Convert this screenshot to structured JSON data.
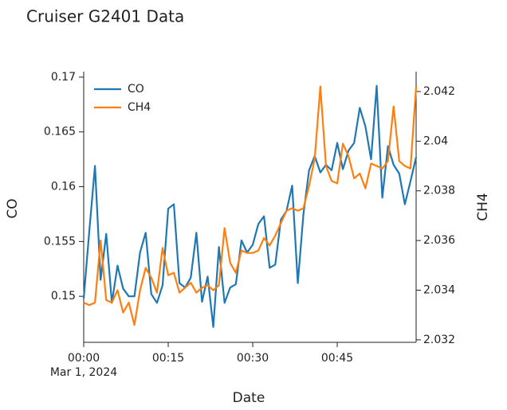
{
  "chart_data": {
    "type": "line",
    "title": "Cruiser G2401 Data",
    "x_label": "Date",
    "y_label": "CO",
    "y2_label": "CH4",
    "x_date_label": "Mar 1, 2024",
    "x": [
      "2024-03-01T00:00",
      "2024-03-01T00:01",
      "2024-03-01T00:02",
      "2024-03-01T00:03",
      "2024-03-01T00:04",
      "2024-03-01T00:05",
      "2024-03-01T00:06",
      "2024-03-01T00:07",
      "2024-03-01T00:08",
      "2024-03-01T00:09",
      "2024-03-01T00:10",
      "2024-03-01T00:11",
      "2024-03-01T00:12",
      "2024-03-01T00:13",
      "2024-03-01T00:14",
      "2024-03-01T00:15",
      "2024-03-01T00:16",
      "2024-03-01T00:17",
      "2024-03-01T00:18",
      "2024-03-01T00:19",
      "2024-03-01T00:20",
      "2024-03-01T00:21",
      "2024-03-01T00:22",
      "2024-03-01T00:23",
      "2024-03-01T00:24",
      "2024-03-01T00:25",
      "2024-03-01T00:26",
      "2024-03-01T00:27",
      "2024-03-01T00:28",
      "2024-03-01T00:29",
      "2024-03-01T00:30",
      "2024-03-01T00:31",
      "2024-03-01T00:32",
      "2024-03-01T00:33",
      "2024-03-01T00:34",
      "2024-03-01T00:35",
      "2024-03-01T00:36",
      "2024-03-01T00:37",
      "2024-03-01T00:38",
      "2024-03-01T00:39",
      "2024-03-01T00:40",
      "2024-03-01T00:41",
      "2024-03-01T00:42",
      "2024-03-01T00:43",
      "2024-03-01T00:44",
      "2024-03-01T00:45",
      "2024-03-01T00:46",
      "2024-03-01T00:47",
      "2024-03-01T00:48",
      "2024-03-01T00:49",
      "2024-03-01T00:50",
      "2024-03-01T00:51",
      "2024-03-01T00:52",
      "2024-03-01T00:53",
      "2024-03-01T00:54",
      "2024-03-01T00:55",
      "2024-03-01T00:56",
      "2024-03-01T00:57",
      "2024-03-01T00:58",
      "2024-03-01T00:59"
    ],
    "series": [
      {
        "name": "CO",
        "color": "#1f77b4",
        "values": [
          0.1498,
          0.156,
          0.1619,
          0.1515,
          0.1557,
          0.1494,
          0.1528,
          0.1507,
          0.15,
          0.15,
          0.154,
          0.1558,
          0.1502,
          0.1494,
          0.151,
          0.158,
          0.1584,
          0.1512,
          0.1508,
          0.1517,
          0.1558,
          0.1495,
          0.1518,
          0.1472,
          0.1545,
          0.1494,
          0.1508,
          0.1511,
          0.1551,
          0.154,
          0.1547,
          0.1566,
          0.1573,
          0.1526,
          0.1529,
          0.157,
          0.1578,
          0.1601,
          0.1512,
          0.1575,
          0.1615,
          0.1628,
          0.1613,
          0.162,
          0.1615,
          0.164,
          0.1616,
          0.1633,
          0.164,
          0.1672,
          0.1655,
          0.1625,
          0.1692,
          0.159,
          0.1637,
          0.162,
          0.1612,
          0.1584,
          0.1605,
          0.1627
        ]
      },
      {
        "name": "CH4",
        "color": "#ff7f0e",
        "axis": "y2",
        "values": [
          2.0335,
          2.0334,
          2.0335,
          2.036,
          2.0336,
          2.0335,
          2.034,
          2.0331,
          2.0335,
          2.0326,
          2.034,
          2.0349,
          2.0345,
          2.0339,
          2.0357,
          2.0346,
          2.0347,
          2.0339,
          2.0341,
          2.0343,
          2.0339,
          2.0341,
          2.0342,
          2.034,
          2.0342,
          2.0365,
          2.0351,
          2.0347,
          2.0356,
          2.0355,
          2.0355,
          2.0356,
          2.0361,
          2.0358,
          2.0362,
          2.0367,
          2.0372,
          2.0373,
          2.0372,
          2.0373,
          2.0382,
          2.0393,
          2.0422,
          2.039,
          2.0384,
          2.0383,
          2.0399,
          2.0394,
          2.0385,
          2.0387,
          2.0381,
          2.0391,
          2.039,
          2.0389,
          2.0392,
          2.0414,
          2.0392,
          2.039,
          2.0389,
          2.0422
        ]
      }
    ],
    "xlim": [
      "2024-03-01T00:00",
      "2024-03-01T00:59"
    ],
    "xticks": [
      {
        "value": "2024-03-01T00:00",
        "label": "00:00"
      },
      {
        "value": "2024-03-01T00:15",
        "label": "00:15"
      },
      {
        "value": "2024-03-01T00:30",
        "label": "00:30"
      },
      {
        "value": "2024-03-01T00:45",
        "label": "00:45"
      }
    ],
    "ylim": [
      0.1458,
      0.1705
    ],
    "yticks": [
      0.15,
      0.155,
      0.16,
      0.165,
      0.17
    ],
    "y2lim": [
      2.0319,
      2.0428
    ],
    "y2ticks": [
      2.032,
      2.034,
      2.036,
      2.038,
      2.04,
      2.042
    ],
    "legend": "top-left"
  }
}
